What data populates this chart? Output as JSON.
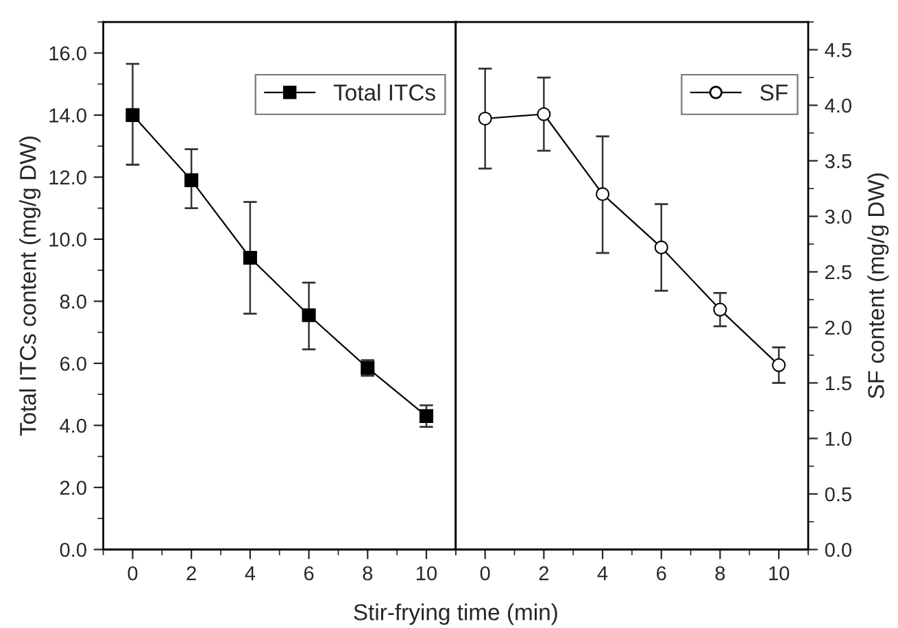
{
  "chart_data": [
    {
      "type": "line",
      "xlabel": "Stir-frying time (min)",
      "ylabel": "Total ITCs content (mg/g DW)",
      "x": [
        0,
        2,
        4,
        6,
        8,
        10
      ],
      "xlim": [
        -1,
        11
      ],
      "xticks": [
        0,
        2,
        4,
        6,
        8,
        10
      ],
      "ylim": [
        0,
        17
      ],
      "yticks": [
        {
          "value": 0,
          "label": "0.0"
        },
        {
          "value": 2,
          "label": "2.0"
        },
        {
          "value": 4,
          "label": "4.0"
        },
        {
          "value": 6,
          "label": "6.0"
        },
        {
          "value": 8,
          "label": "8.0"
        },
        {
          "value": 10,
          "label": "10.0"
        },
        {
          "value": 12,
          "label": "12.0"
        },
        {
          "value": 14,
          "label": "14.0"
        },
        {
          "value": 16,
          "label": "16.0"
        }
      ],
      "series": [
        {
          "name": "Total ITCs",
          "color": "#000000",
          "marker": "square",
          "values": [
            14.0,
            11.9,
            9.4,
            7.55,
            5.85,
            4.3
          ],
          "errors": [
            [
              12.4,
              15.65
            ],
            [
              11.0,
              12.9
            ],
            [
              7.6,
              11.2
            ],
            [
              6.45,
              8.6
            ],
            [
              5.6,
              6.1
            ],
            [
              3.95,
              4.65
            ]
          ]
        }
      ],
      "legend": "top right",
      "grid": false,
      "line_style": "solid"
    },
    {
      "type": "line",
      "y2label": "SF content (mg/g DW)",
      "x": [
        0,
        2,
        4,
        6,
        8,
        10
      ],
      "xlim": [
        -1,
        11
      ],
      "xticks": [
        0,
        2,
        4,
        6,
        8,
        10
      ],
      "y2lim": [
        0,
        4.75
      ],
      "y2ticks": [
        {
          "value": 0,
          "label": "0.0"
        },
        {
          "value": 0.5,
          "label": "0.5"
        },
        {
          "value": 1,
          "label": "1.0"
        },
        {
          "value": 1.5,
          "label": "1.5"
        },
        {
          "value": 2,
          "label": "2.0"
        },
        {
          "value": 2.5,
          "label": "2.5"
        },
        {
          "value": 3,
          "label": "3.0"
        },
        {
          "value": 3.5,
          "label": "3.5"
        },
        {
          "value": 4,
          "label": "4.0"
        },
        {
          "value": 4.5,
          "label": "4.5"
        }
      ],
      "series": [
        {
          "name": "SF",
          "color": "#000000",
          "marker": "circle",
          "axis": "y2",
          "values": [
            3.88,
            3.92,
            3.2,
            2.72,
            2.16,
            1.66
          ],
          "errors": [
            [
              3.43,
              4.33
            ],
            [
              3.59,
              4.25
            ],
            [
              2.67,
              3.72
            ],
            [
              2.33,
              3.11
            ],
            [
              2.01,
              2.31
            ],
            [
              1.5,
              1.82
            ]
          ]
        }
      ],
      "legend": "top right",
      "grid": false,
      "line_style": "solid"
    }
  ]
}
